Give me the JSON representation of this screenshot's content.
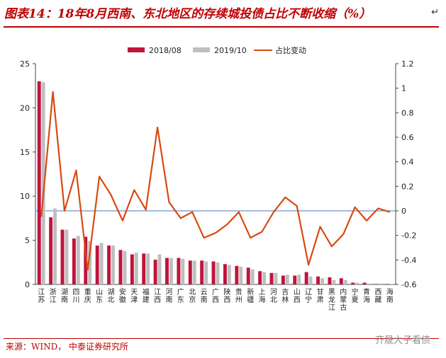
{
  "header": {
    "title": "图表14：18年8月西南、东北地区的存续城投债占比不断收缩（%）",
    "arrow": "↵"
  },
  "footer": {
    "source": "来源：WIND， 中泰证券研究所",
    "watermark": "齐晟大子看债"
  },
  "colors": {
    "series1": "#c0143c",
    "series2": "#bfbfbf",
    "series3": "#d84a10",
    "refline": "#4a76c4",
    "accent": "#c00000"
  },
  "chart_data": {
    "type": "bar",
    "title": "",
    "categories": [
      "江苏",
      "浙江",
      "湖南",
      "四川",
      "重庆",
      "山东",
      "湖北",
      "安徽",
      "天津",
      "福建",
      "江西",
      "河南",
      "广东",
      "北京",
      "云南",
      "广西",
      "陕西",
      "贵州",
      "新疆",
      "上海",
      "河北",
      "吉林",
      "山西",
      "辽宁",
      "甘肃",
      "黑龙江",
      "内蒙古",
      "宁夏",
      "青海",
      "西藏",
      "海南"
    ],
    "series": [
      {
        "name": "2018/08",
        "type": "bar",
        "axis": "left",
        "values": [
          23.0,
          7.6,
          6.2,
          5.2,
          5.4,
          4.4,
          4.4,
          3.9,
          3.4,
          3.5,
          2.8,
          3.0,
          3.0,
          2.7,
          2.7,
          2.6,
          2.3,
          2.1,
          1.9,
          1.5,
          1.3,
          1.0,
          1.0,
          1.4,
          0.9,
          0.8,
          0.7,
          0.2,
          0.2,
          0.05,
          0.05
        ]
      },
      {
        "name": "2019/10",
        "type": "bar",
        "axis": "left",
        "values": [
          22.9,
          8.6,
          6.2,
          5.5,
          4.9,
          4.7,
          4.4,
          3.8,
          3.6,
          3.5,
          3.4,
          3.0,
          2.9,
          2.7,
          2.6,
          2.5,
          2.2,
          2.0,
          1.7,
          1.4,
          1.3,
          1.1,
          1.1,
          0.9,
          0.7,
          0.5,
          0.5,
          0.2,
          0.1,
          0.1,
          0.05
        ]
      },
      {
        "name": "占比变动",
        "type": "line",
        "axis": "right",
        "values": [
          -0.05,
          0.97,
          0.0,
          0.33,
          -0.48,
          0.28,
          0.13,
          -0.08,
          0.17,
          0.01,
          0.68,
          0.07,
          -0.06,
          -0.01,
          -0.22,
          -0.18,
          -0.11,
          -0.01,
          -0.22,
          -0.17,
          -0.01,
          0.11,
          0.04,
          -0.44,
          -0.13,
          -0.29,
          -0.19,
          0.03,
          -0.08,
          0.02,
          -0.01
        ]
      }
    ],
    "y_left": {
      "min": 0,
      "max": 25,
      "ticks": [
        "0",
        "5",
        "10",
        "15",
        "20",
        "25"
      ]
    },
    "y_right": {
      "min": -0.6,
      "max": 1.2,
      "ticks": [
        "-0.6",
        "-0.4",
        "-0.2",
        "0",
        "0.2",
        "0.4",
        "0.6",
        "0.8",
        "1",
        "1.2"
      ]
    },
    "reference_line": {
      "axis": "right",
      "value": 0
    },
    "grid": false,
    "legend": "top"
  }
}
